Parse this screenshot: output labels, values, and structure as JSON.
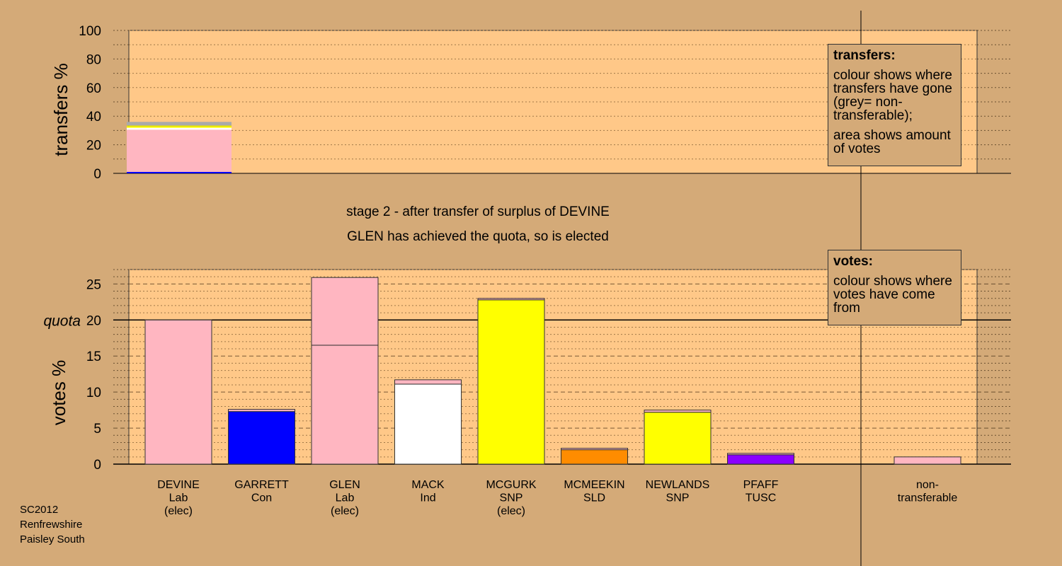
{
  "chart_data": [
    {
      "type": "bar",
      "ylabel": "transfers %",
      "ylim": [
        0,
        100
      ],
      "yticks": [
        0,
        20,
        40,
        60,
        80,
        100
      ],
      "grid": true,
      "bars": [
        {
          "from": "DEVINE",
          "segments": [
            {
              "to": "GARRETT",
              "value": 1.0,
              "color": "#0000ff"
            },
            {
              "to": "GLEN",
              "value": 29.5,
              "color": "#ffb6c1"
            },
            {
              "to": "MACK",
              "value": 1.4,
              "color": "#ffffff"
            },
            {
              "to": "MCGURK",
              "value": 0.8,
              "color": "#ffff00"
            },
            {
              "to": "NEWLANDS",
              "value": 0.8,
              "color": "#e0e000"
            },
            {
              "to": "non-transferable",
              "value": 2.5,
              "color": "#aaaaaa"
            }
          ]
        }
      ]
    },
    {
      "type": "bar",
      "ylabel": "votes %",
      "ylim": [
        0,
        27
      ],
      "yticks": [
        0,
        5,
        10,
        15,
        20,
        25
      ],
      "quota": 20,
      "quota_label": "quota",
      "grid": true,
      "categories": [
        {
          "name": "DEVINE",
          "party": "Lab",
          "status": "(elec)",
          "total": 20.0,
          "segments": [
            {
              "source": "first preferences",
              "value": 20.0,
              "color": "#ffb6c1"
            }
          ]
        },
        {
          "name": "GARRETT",
          "party": "Con",
          "status": "",
          "total": 7.6,
          "segments": [
            {
              "source": "first preferences",
              "value": 7.3,
              "color": "#0000ff"
            },
            {
              "source": "transfer from DEVINE",
              "value": 0.3,
              "color": "#ffb6c1"
            }
          ]
        },
        {
          "name": "GLEN",
          "party": "Lab",
          "status": "(elec)",
          "total": 25.9,
          "segments": [
            {
              "source": "first preferences",
              "value": 16.5,
              "color": "#ffb6c1"
            },
            {
              "source": "transfer from DEVINE",
              "value": 9.4,
              "color": "#ffb6c1"
            }
          ]
        },
        {
          "name": "MACK",
          "party": "Ind",
          "status": "",
          "total": 11.7,
          "segments": [
            {
              "source": "first preferences",
              "value": 11.1,
              "color": "#ffffff"
            },
            {
              "source": "transfer from DEVINE",
              "value": 0.6,
              "color": "#ffb6c1"
            }
          ]
        },
        {
          "name": "MCGURK",
          "party": "SNP",
          "status": "(elec)",
          "total": 23.0,
          "segments": [
            {
              "source": "first preferences",
              "value": 22.8,
              "color": "#ffff00"
            },
            {
              "source": "transfer from DEVINE",
              "value": 0.2,
              "color": "#ffb6c1"
            }
          ]
        },
        {
          "name": "MCMEEKIN",
          "party": "SLD",
          "status": "",
          "total": 2.2,
          "segments": [
            {
              "source": "first preferences",
              "value": 2.0,
              "color": "#ff8c00"
            },
            {
              "source": "transfer from DEVINE",
              "value": 0.2,
              "color": "#ffb6c1"
            }
          ]
        },
        {
          "name": "NEWLANDS",
          "party": "SNP",
          "status": "",
          "total": 7.5,
          "segments": [
            {
              "source": "first preferences",
              "value": 7.2,
              "color": "#ffff00"
            },
            {
              "source": "transfer from DEVINE",
              "value": 0.3,
              "color": "#ffb6c1"
            }
          ]
        },
        {
          "name": "PFAFF",
          "party": "TUSC",
          "status": "",
          "total": 1.5,
          "segments": [
            {
              "source": "first preferences",
              "value": 1.3,
              "color": "#8b00ff"
            },
            {
              "source": "transfer from DEVINE",
              "value": 0.2,
              "color": "#ffb6c1"
            }
          ]
        }
      ],
      "nontransferable": {
        "label_lines": [
          "non-",
          "transferable"
        ],
        "value": 1.0,
        "color": "#ffb6c1"
      }
    }
  ],
  "stage_text": "stage 2 - after transfer of surplus of DEVINE",
  "elected_text": "GLEN has achieved the quota, so is elected",
  "transfers_legend": {
    "title": "transfers:",
    "para1": "colour shows where transfers have gone (grey= non-transferable);",
    "para2": "area shows amount of votes"
  },
  "votes_legend": {
    "title": "votes:",
    "para1": "colour shows where votes have come from"
  },
  "footer": {
    "line1": "SC2012",
    "line2": "Renfrewshire",
    "line3": "Paisley South"
  },
  "colors": {
    "background": "#d4aa78",
    "plot_area": "#ffc888"
  }
}
